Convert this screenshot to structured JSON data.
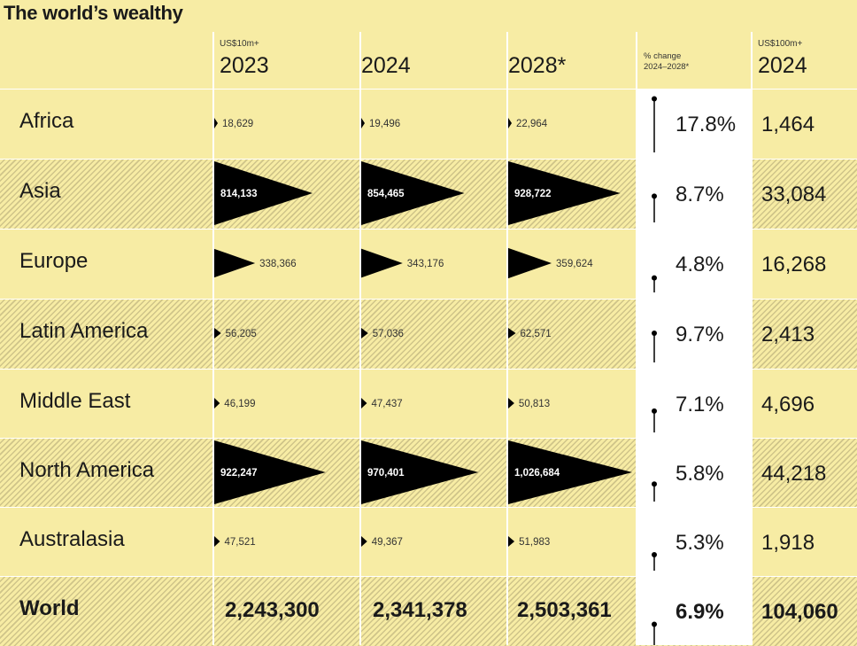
{
  "title": "The world’s wealthy",
  "headers": {
    "unit_10m": "US$10m+",
    "unit_100m": "US$100m+",
    "y2023": "2023",
    "y2024": "2024",
    "y2028": "2028*",
    "pct_line1": "% change",
    "pct_line2": "2024–2028*",
    "y2024b": "2024"
  },
  "chart_data": {
    "type": "table",
    "title": "The world’s wealthy",
    "columns": [
      "2023",
      "2024",
      "2028*",
      "% change 2024–2028*",
      "2024"
    ],
    "rows": [
      {
        "region": "Africa",
        "v2023": 18629,
        "v2024": 19496,
        "v2028": 22964,
        "v2023_label": "18,629",
        "v2024_label": "19,496",
        "v2028_label": "22,964",
        "pct": 17.8,
        "pct_label": "17.8%",
        "ultra2024_label": "1,464"
      },
      {
        "region": "Asia",
        "v2023": 814133,
        "v2024": 854465,
        "v2028": 928722,
        "v2023_label": "814,133",
        "v2024_label": "854,465",
        "v2028_label": "928,722",
        "pct": 8.7,
        "pct_label": "8.7%",
        "ultra2024_label": "33,084"
      },
      {
        "region": "Europe",
        "v2023": 338366,
        "v2024": 343176,
        "v2028": 359624,
        "v2023_label": "338,366",
        "v2024_label": "343,176",
        "v2028_label": "359,624",
        "pct": 4.8,
        "pct_label": "4.8%",
        "ultra2024_label": "16,268"
      },
      {
        "region": "Latin America",
        "v2023": 56205,
        "v2024": 57036,
        "v2028": 62571,
        "v2023_label": "56,205",
        "v2024_label": "57,036",
        "v2028_label": "62,571",
        "pct": 9.7,
        "pct_label": "9.7%",
        "ultra2024_label": "2,413"
      },
      {
        "region": "Middle East",
        "v2023": 46199,
        "v2024": 47437,
        "v2028": 50813,
        "v2023_label": "46,199",
        "v2024_label": "47,437",
        "v2028_label": "50,813",
        "pct": 7.1,
        "pct_label": "7.1%",
        "ultra2024_label": "4,696"
      },
      {
        "region": "North America",
        "v2023": 922247,
        "v2024": 970401,
        "v2028": 1026684,
        "v2023_label": "922,247",
        "v2024_label": "970,401",
        "v2028_label": "1,026,684",
        "pct": 5.8,
        "pct_label": "5.8%",
        "ultra2024_label": "44,218"
      },
      {
        "region": "Australasia",
        "v2023": 47521,
        "v2024": 49367,
        "v2028": 51983,
        "v2023_label": "47,521",
        "v2024_label": "49,367",
        "v2028_label": "51,983",
        "pct": 5.3,
        "pct_label": "5.3%",
        "ultra2024_label": "1,918"
      }
    ],
    "total": {
      "region": "World",
      "v2023_label": "2,243,300",
      "v2024_label": "2,341,378",
      "v2028_label": "2,503,361",
      "pct": 6.9,
      "pct_label": "6.9%",
      "ultra2024_label": "104,060"
    },
    "colors": {
      "background": "#f7eca4",
      "marks": "#000000",
      "panel": "#ffffff"
    }
  }
}
